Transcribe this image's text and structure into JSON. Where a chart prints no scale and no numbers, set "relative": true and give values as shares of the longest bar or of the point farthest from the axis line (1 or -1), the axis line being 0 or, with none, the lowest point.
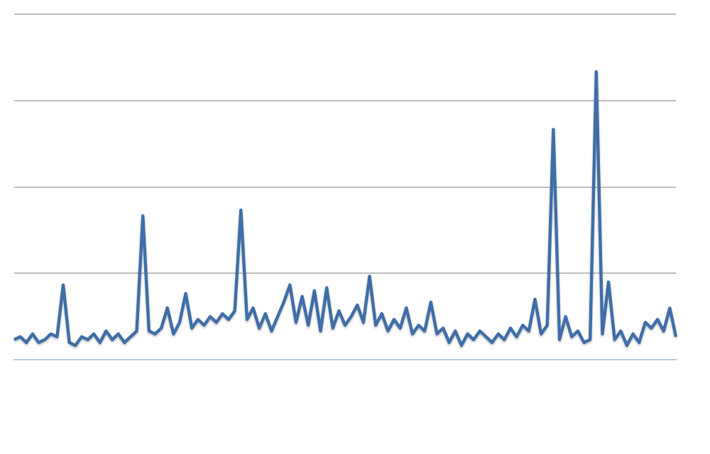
{
  "chart_data": {
    "type": "line",
    "relative": true,
    "grid": "y",
    "marker": "none",
    "line_style": "solid",
    "categories": [
      null,
      null,
      null,
      null,
      null,
      null,
      null,
      null,
      null,
      null,
      null,
      null,
      null,
      null,
      null,
      null,
      null,
      null,
      null,
      null,
      null,
      null,
      null,
      null,
      null,
      null,
      null,
      null,
      null,
      null,
      null,
      null,
      null,
      null,
      null,
      null,
      null,
      null,
      null,
      null,
      null,
      null,
      null,
      null,
      null,
      null,
      null,
      null,
      null,
      null,
      null,
      null,
      null,
      null,
      null,
      null,
      null,
      null,
      null,
      null,
      null,
      null,
      null,
      null,
      null,
      null,
      null,
      null,
      null,
      null,
      null,
      null,
      null,
      null,
      null,
      null,
      null,
      null,
      null,
      null,
      null,
      null,
      null,
      null,
      null,
      null,
      null,
      null,
      null,
      null,
      null,
      null,
      null,
      null,
      null,
      null,
      null,
      null,
      null,
      null,
      null,
      null,
      null,
      null,
      null,
      null,
      null,
      null,
      null
    ],
    "series": [
      {
        "color": "#3f6ea8",
        "values": [
          0.07,
          0.08,
          0.06,
          0.09,
          0.06,
          0.07,
          0.09,
          0.08,
          0.26,
          0.06,
          0.05,
          0.08,
          0.07,
          0.09,
          0.06,
          0.1,
          0.07,
          0.09,
          0.06,
          0.08,
          0.1,
          0.5,
          0.1,
          0.09,
          0.11,
          0.18,
          0.09,
          0.13,
          0.23,
          0.11,
          0.14,
          0.12,
          0.15,
          0.13,
          0.16,
          0.14,
          0.17,
          0.52,
          0.14,
          0.18,
          0.11,
          0.16,
          0.1,
          0.15,
          0.2,
          0.26,
          0.13,
          0.22,
          0.12,
          0.24,
          0.1,
          0.25,
          0.11,
          0.17,
          0.12,
          0.15,
          0.19,
          0.13,
          0.29,
          0.12,
          0.16,
          0.1,
          0.14,
          0.11,
          0.18,
          0.09,
          0.12,
          0.1,
          0.2,
          0.09,
          0.11,
          0.06,
          0.1,
          0.05,
          0.09,
          0.07,
          0.1,
          0.08,
          0.06,
          0.09,
          0.07,
          0.11,
          0.08,
          0.12,
          0.1,
          0.21,
          0.09,
          0.12,
          0.8,
          0.07,
          0.15,
          0.08,
          0.1,
          0.06,
          0.07,
          1,
          0.09,
          0.27,
          0.07,
          0.1,
          0.05,
          0.09,
          0.06,
          0.13,
          0.11,
          0.14,
          0.1,
          0.18,
          0.08
        ]
      }
    ]
  }
}
